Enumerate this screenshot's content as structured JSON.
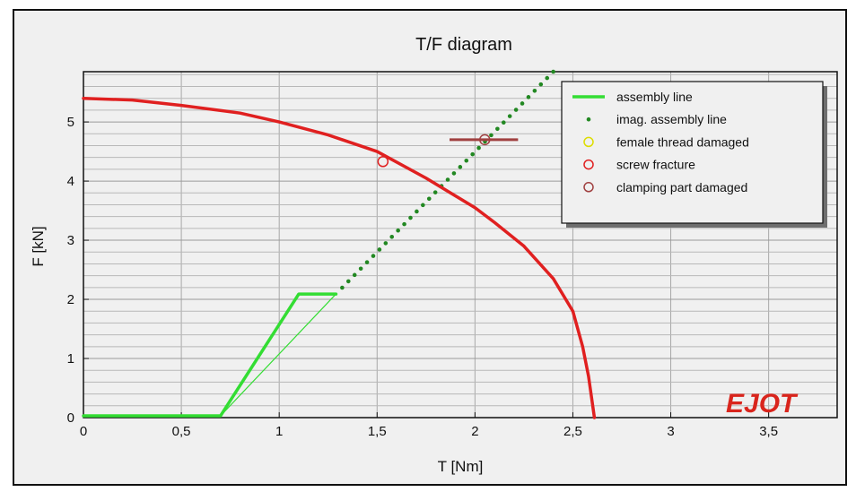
{
  "chart_data": {
    "type": "line",
    "title": "T/F diagram",
    "xlabel": "T [Nm]",
    "ylabel": "F [kN]",
    "xlim": [
      0,
      3.85
    ],
    "ylim": [
      0,
      5.85
    ],
    "x_ticks": [
      0,
      0.5,
      1,
      1.5,
      2,
      2.5,
      3,
      3.5
    ],
    "x_tick_labels": [
      "0",
      "0,5",
      "1",
      "1,5",
      "2",
      "2,5",
      "3",
      "3,5"
    ],
    "y_ticks": [
      0,
      1,
      2,
      3,
      4,
      5
    ],
    "y_tick_labels": [
      "0",
      "1",
      "2",
      "3",
      "4",
      "5"
    ],
    "grid": true,
    "legend_position": "top-right",
    "series": [
      {
        "name": "assembly line",
        "color": "#33dd33",
        "style": "thick-line",
        "points": [
          [
            0,
            0.03
          ],
          [
            0.7,
            0.03
          ],
          [
            1.1,
            2.09
          ],
          [
            1.29,
            2.09
          ]
        ]
      },
      {
        "name": "",
        "color": "#33dd33",
        "style": "thin-line",
        "points": [
          [
            0.7,
            0.03
          ],
          [
            1.29,
            2.09
          ]
        ]
      },
      {
        "name": "imag. assembly line",
        "color": "#228822",
        "style": "dots",
        "points": [
          [
            1.29,
            2.09
          ],
          [
            2.4,
            5.85
          ]
        ]
      },
      {
        "name": "",
        "color": "#e02020",
        "style": "thick-line",
        "points": [
          [
            0,
            5.4
          ],
          [
            0.25,
            5.37
          ],
          [
            0.5,
            5.28
          ],
          [
            0.8,
            5.15
          ],
          [
            1.0,
            5.0
          ],
          [
            1.25,
            4.78
          ],
          [
            1.5,
            4.5
          ],
          [
            1.75,
            4.05
          ],
          [
            2.0,
            3.55
          ],
          [
            2.1,
            3.3
          ],
          [
            2.25,
            2.9
          ],
          [
            2.4,
            2.35
          ],
          [
            2.5,
            1.8
          ],
          [
            2.55,
            1.2
          ],
          [
            2.58,
            0.7
          ],
          [
            2.61,
            0
          ]
        ]
      }
    ],
    "markers": [
      {
        "name": "screw fracture",
        "x": 1.53,
        "y": 4.33,
        "color": "#e02020"
      },
      {
        "name": "clamping part damaged",
        "x": 2.05,
        "y": 4.7,
        "color": "#a04040",
        "range_x": [
          1.87,
          2.22
        ]
      }
    ],
    "legend": [
      {
        "label": "assembly line",
        "symbol": "line",
        "color": "#33dd33"
      },
      {
        "label": "imag. assembly line",
        "symbol": "dot",
        "color": "#228822"
      },
      {
        "label": "female thread damaged",
        "symbol": "circle",
        "color": "#dddd00"
      },
      {
        "label": "screw fracture",
        "symbol": "circle",
        "color": "#e02020"
      },
      {
        "label": "clamping part damaged",
        "symbol": "circle",
        "color": "#a04040"
      }
    ]
  },
  "logo": {
    "text": "EJOT",
    "color": "#d9251d"
  }
}
